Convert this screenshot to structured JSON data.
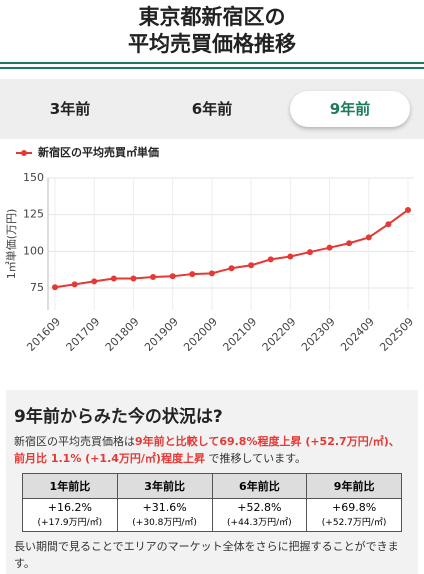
{
  "header": {
    "title_line1": "東京都新宿区の",
    "title_line2": "平均売買価格推移"
  },
  "tabs": [
    "3年前",
    "6年前",
    "9年前"
  ],
  "active_tab": 2,
  "chart_data": {
    "type": "line",
    "legend": "新宿区の平均売買㎡単価",
    "y_label": "1㎡単価(万円)",
    "categories": [
      "201609",
      null,
      "201709",
      null,
      "201809",
      null,
      "201909",
      null,
      "202009",
      null,
      "202109",
      null,
      "202209",
      null,
      "202309",
      null,
      "202409",
      null,
      "202509"
    ],
    "series": [
      {
        "name": "新宿区の平均売買㎡単価",
        "color": "#e53935",
        "values": [
          75.5,
          77.5,
          79.5,
          81.5,
          81.5,
          82.5,
          83,
          84.5,
          85,
          88.5,
          90.5,
          94.5,
          96.5,
          99.5,
          102.5,
          105.5,
          109.5,
          118.5,
          128.2
        ]
      }
    ],
    "ylim": [
      60,
      150
    ],
    "yticks": [
      75,
      100,
      125,
      150
    ],
    "grid": true
  },
  "summary": {
    "heading": "9年前からみた今の状況は?",
    "text_parts": [
      "新宿区の平均売買価格は",
      "9年前と比較して69.8%程度上昇 (+52.7万円/㎡)、前月比 1.1% (+1.4万円/㎡)程度上昇",
      " で推移しています。"
    ],
    "table": {
      "headers": [
        "1年前比",
        "3年前比",
        "6年前比",
        "9年前比"
      ],
      "rows": [
        [
          "+16.2%",
          "+31.6%",
          "+52.8%",
          "+69.8%"
        ],
        [
          "(+17.9万円/㎡)",
          "(+30.8万円/㎡)",
          "(+44.3万円/㎡)",
          "(+52.7万円/㎡)"
        ]
      ]
    },
    "footer": "長い期間で見ることでエリアのマーケット全体をさらに把握することができます。"
  }
}
